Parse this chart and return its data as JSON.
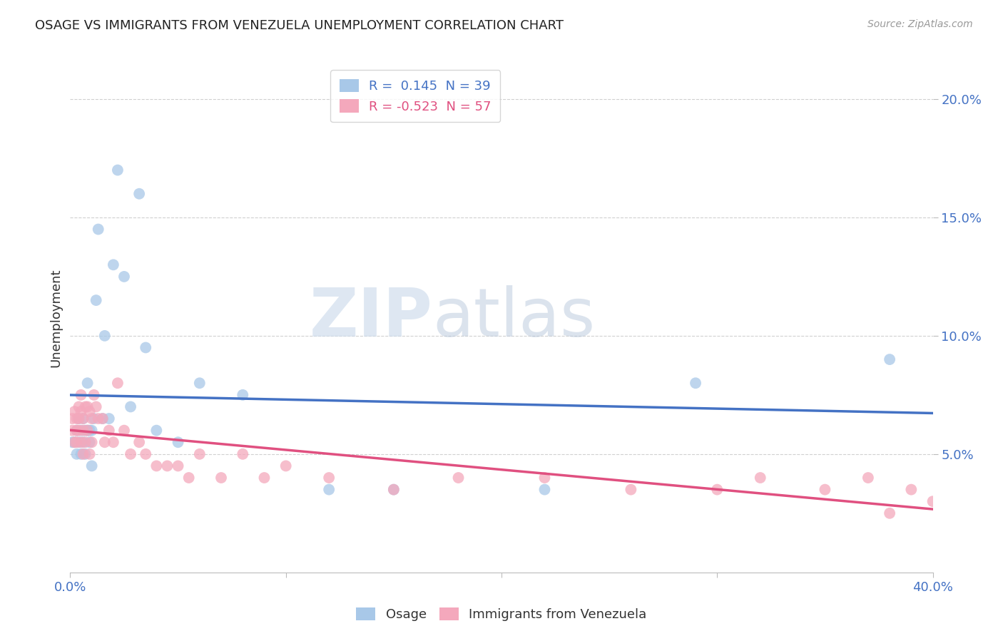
{
  "title": "OSAGE VS IMMIGRANTS FROM VENEZUELA UNEMPLOYMENT CORRELATION CHART",
  "source": "Source: ZipAtlas.com",
  "ylabel": "Unemployment",
  "xlim": [
    0.0,
    0.4
  ],
  "ylim": [
    0.0,
    0.215
  ],
  "yticks": [
    0.05,
    0.1,
    0.15,
    0.2
  ],
  "ytick_labels": [
    "5.0%",
    "10.0%",
    "15.0%",
    "20.0%"
  ],
  "xticks": [
    0.0,
    0.1,
    0.2,
    0.3,
    0.4
  ],
  "xtick_labels": [
    "0.0%",
    "",
    "",
    "",
    "40.0%"
  ],
  "blue_color": "#a8c8e8",
  "pink_color": "#f4a8bc",
  "blue_line_color": "#4472c4",
  "pink_line_color": "#e05080",
  "background_color": "#ffffff",
  "grid_color": "#d0d0d0",
  "osage_x": [
    0.001,
    0.002,
    0.003,
    0.003,
    0.004,
    0.004,
    0.005,
    0.005,
    0.006,
    0.006,
    0.007,
    0.007,
    0.008,
    0.008,
    0.009,
    0.009,
    0.01,
    0.01,
    0.011,
    0.012,
    0.013,
    0.015,
    0.016,
    0.018,
    0.02,
    0.022,
    0.025,
    0.028,
    0.032,
    0.035,
    0.04,
    0.05,
    0.06,
    0.08,
    0.12,
    0.15,
    0.22,
    0.29,
    0.38
  ],
  "osage_y": [
    0.055,
    0.055,
    0.06,
    0.05,
    0.055,
    0.065,
    0.06,
    0.05,
    0.055,
    0.065,
    0.06,
    0.05,
    0.06,
    0.08,
    0.055,
    0.06,
    0.06,
    0.045,
    0.065,
    0.115,
    0.145,
    0.065,
    0.1,
    0.065,
    0.13,
    0.17,
    0.125,
    0.07,
    0.16,
    0.095,
    0.06,
    0.055,
    0.08,
    0.075,
    0.035,
    0.035,
    0.035,
    0.08,
    0.09
  ],
  "venezuela_x": [
    0.001,
    0.001,
    0.002,
    0.002,
    0.003,
    0.003,
    0.003,
    0.004,
    0.004,
    0.004,
    0.005,
    0.005,
    0.005,
    0.006,
    0.006,
    0.006,
    0.007,
    0.007,
    0.008,
    0.008,
    0.009,
    0.009,
    0.01,
    0.01,
    0.011,
    0.012,
    0.013,
    0.015,
    0.016,
    0.018,
    0.02,
    0.022,
    0.025,
    0.028,
    0.032,
    0.035,
    0.04,
    0.045,
    0.05,
    0.055,
    0.06,
    0.07,
    0.08,
    0.09,
    0.1,
    0.12,
    0.15,
    0.18,
    0.22,
    0.26,
    0.3,
    0.32,
    0.35,
    0.37,
    0.38,
    0.39,
    0.4
  ],
  "venezuela_y": [
    0.065,
    0.06,
    0.068,
    0.055,
    0.065,
    0.06,
    0.055,
    0.07,
    0.065,
    0.06,
    0.075,
    0.068,
    0.055,
    0.065,
    0.06,
    0.05,
    0.07,
    0.055,
    0.07,
    0.06,
    0.068,
    0.05,
    0.065,
    0.055,
    0.075,
    0.07,
    0.065,
    0.065,
    0.055,
    0.06,
    0.055,
    0.08,
    0.06,
    0.05,
    0.055,
    0.05,
    0.045,
    0.045,
    0.045,
    0.04,
    0.05,
    0.04,
    0.05,
    0.04,
    0.045,
    0.04,
    0.035,
    0.04,
    0.04,
    0.035,
    0.035,
    0.04,
    0.035,
    0.04,
    0.025,
    0.035,
    0.03
  ]
}
